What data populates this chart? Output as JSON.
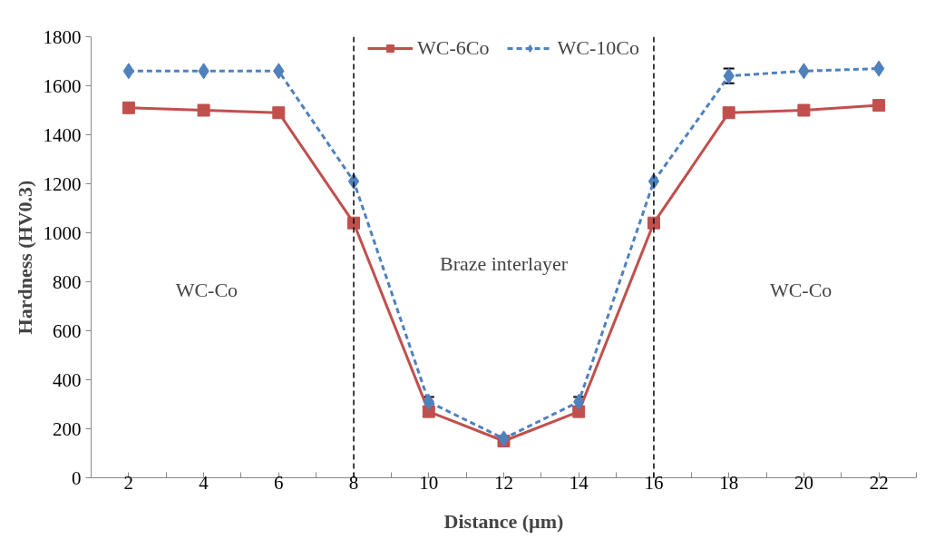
{
  "chart_data": {
    "type": "line",
    "xlabel": "Distance (µm)",
    "ylabel": "Hardness (HV0.3)",
    "x": [
      2,
      4,
      6,
      8,
      10,
      12,
      14,
      16,
      18,
      20,
      22
    ],
    "series": [
      {
        "name": "WC-6Co",
        "color": "#c0504d",
        "marker": "square",
        "line_style": "solid",
        "values": [
          1510,
          1500,
          1490,
          1040,
          270,
          150,
          270,
          1040,
          1490,
          1500,
          1520
        ]
      },
      {
        "name": "WC-10Co",
        "color": "#4f81bd",
        "marker": "diamond",
        "line_style": "dashed",
        "values": [
          1660,
          1660,
          1660,
          1210,
          310,
          160,
          310,
          1210,
          1640,
          1660,
          1670
        ],
        "errors": [
          null,
          null,
          null,
          null,
          20,
          null,
          20,
          null,
          30,
          null,
          null
        ]
      }
    ],
    "xlim": [
      1,
      23
    ],
    "xticks": [
      {
        "value": 1,
        "label": null
      },
      2,
      {
        "value": 3,
        "label": null
      },
      4,
      {
        "value": 5,
        "label": null
      },
      6,
      {
        "value": 7,
        "label": null
      },
      8,
      {
        "value": 9,
        "label": null
      },
      10,
      {
        "value": 11,
        "label": null
      },
      12,
      {
        "value": 13,
        "label": null
      },
      14,
      {
        "value": 15,
        "label": null
      },
      16,
      {
        "value": 17,
        "label": null
      },
      18,
      {
        "value": 19,
        "label": null
      },
      20,
      {
        "value": 21,
        "label": null
      },
      22,
      {
        "value": 23,
        "label": null
      }
    ],
    "ylim": [
      0,
      1800
    ],
    "yticks": [
      0,
      200,
      400,
      600,
      800,
      1000,
      1200,
      1400,
      1600,
      1800
    ],
    "ref_lines": [
      {
        "axis": "x",
        "value": 8,
        "color": "#000000",
        "line_style": "dashed"
      },
      {
        "axis": "x",
        "value": 16,
        "color": "#000000",
        "line_style": "dashed"
      }
    ],
    "annotations": [
      "WC-Co",
      "Braze interlayer",
      "WC-Co"
    ],
    "grid": false,
    "legend": "top"
  }
}
